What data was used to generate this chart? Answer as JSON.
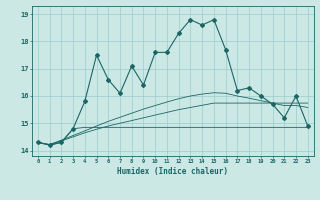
{
  "x": [
    0,
    1,
    2,
    3,
    4,
    5,
    6,
    7,
    8,
    9,
    10,
    11,
    12,
    13,
    14,
    15,
    16,
    17,
    18,
    19,
    20,
    21,
    22,
    23
  ],
  "line1": [
    14.3,
    14.2,
    14.3,
    14.8,
    15.8,
    17.5,
    16.6,
    16.1,
    17.1,
    16.4,
    17.6,
    17.6,
    18.3,
    18.8,
    18.6,
    18.8,
    17.7,
    16.2,
    16.3,
    16.0,
    15.7,
    15.2,
    16.0,
    14.9
  ],
  "line2": [
    14.3,
    14.2,
    14.3,
    14.8,
    14.85,
    14.85,
    14.85,
    14.85,
    14.85,
    14.85,
    14.85,
    14.85,
    14.85,
    14.85,
    14.85,
    14.85,
    14.85,
    14.85,
    14.85,
    14.85,
    14.85,
    14.85,
    14.85,
    14.85
  ],
  "line3": [
    14.3,
    14.22,
    14.35,
    14.5,
    14.65,
    14.78,
    14.9,
    15.0,
    15.1,
    15.2,
    15.3,
    15.4,
    15.5,
    15.58,
    15.66,
    15.74,
    15.74,
    15.74,
    15.74,
    15.74,
    15.74,
    15.74,
    15.74,
    15.74
  ],
  "line4": [
    14.3,
    14.22,
    14.38,
    14.55,
    14.72,
    14.9,
    15.07,
    15.22,
    15.37,
    15.52,
    15.65,
    15.78,
    15.9,
    16.0,
    16.07,
    16.12,
    16.1,
    16.0,
    15.92,
    15.83,
    15.74,
    15.65,
    15.65,
    15.58
  ],
  "bg_color": "#cce8e4",
  "grid_color": "#99cccc",
  "line_color": "#1a6666",
  "xlabel": "Humidex (Indice chaleur)",
  "ylim": [
    13.8,
    19.3
  ],
  "xlim": [
    -0.5,
    23.5
  ]
}
